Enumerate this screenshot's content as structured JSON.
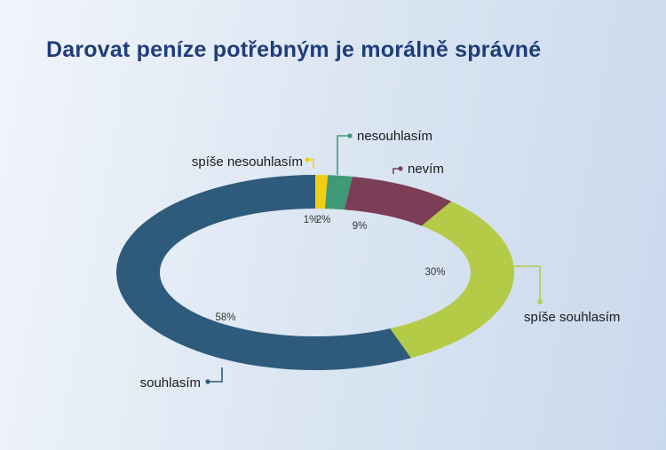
{
  "chart_data": {
    "type": "pie",
    "variant": "donut",
    "title": "Darovat peníze potřebným je morálně správné",
    "slices": [
      {
        "label": "spíše nesouhlasím",
        "value": 1,
        "value_label": "1%",
        "color": "#f0cf12"
      },
      {
        "label": "nesouhlasím",
        "value": 2,
        "value_label": "2%",
        "color": "#3e9a77"
      },
      {
        "label": "nevím",
        "value": 9,
        "value_label": "9%",
        "color": "#7c3d56"
      },
      {
        "label": "spíše souhlasím",
        "value": 30,
        "value_label": "30%",
        "color": "#b4cb48"
      },
      {
        "label": "souhlasím",
        "value": 58,
        "value_label": "58%",
        "color": "#2e5b7b"
      }
    ],
    "legend": "callout-labels"
  }
}
